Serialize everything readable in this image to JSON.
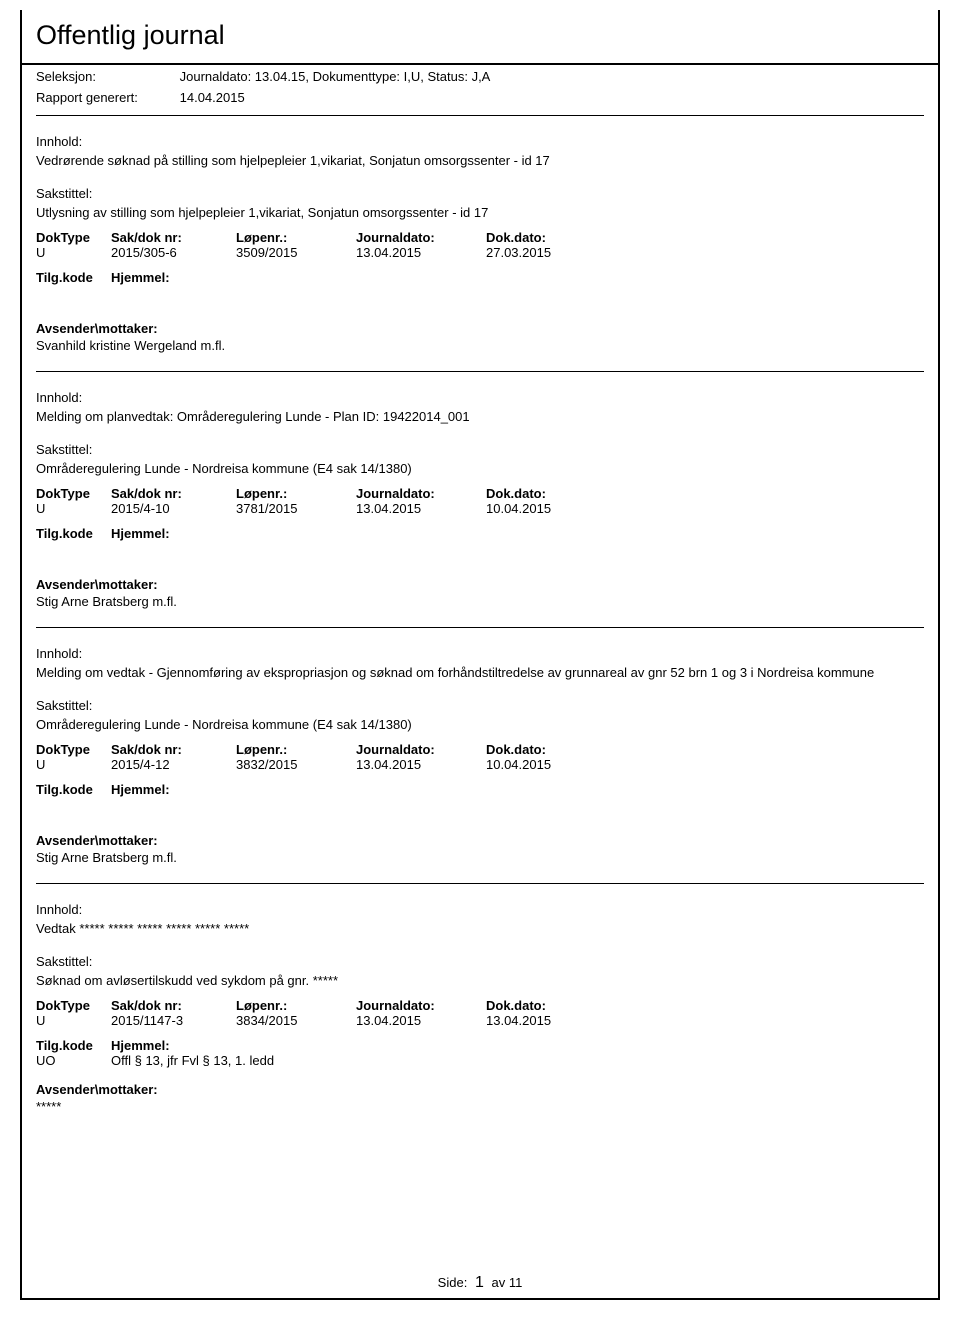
{
  "header": {
    "title": "Offentlig journal",
    "seleksjon_label": "Seleksjon:",
    "seleksjon_value": "Journaldato: 13.04.15, Dokumenttype: I,U, Status: J,A",
    "rapport_label": "Rapport generert:",
    "rapport_value": "14.04.2015"
  },
  "labels": {
    "innhold": "Innhold:",
    "sakstittel": "Sakstittel:",
    "doktype": "DokType",
    "sakdok": "Sak/dok nr:",
    "lopenr": "Løpenr.:",
    "journaldato": "Journaldato:",
    "dokdato": "Dok.dato:",
    "tilgkode": "Tilg.kode",
    "hjemmel": "Hjemmel:",
    "avsender": "Avsender\\mottaker:"
  },
  "entries": [
    {
      "innhold": "Vedrørende søknad på stilling som hjelpepleier 1,vikariat, Sonjatun omsorgssenter - id 17",
      "sakstittel": "Utlysning av stilling som hjelpepleier 1,vikariat, Sonjatun omsorgssenter - id 17",
      "doktype": "U",
      "sakdok": "2015/305-6",
      "lopenr": "3509/2015",
      "journaldato": "13.04.2015",
      "dokdato": "27.03.2015",
      "tilgkode": "",
      "hjemmel": "",
      "avsender": "Svanhild kristine Wergeland m.fl."
    },
    {
      "innhold": "Melding om planvedtak: Områderegulering Lunde - Plan ID: 19422014_001",
      "sakstittel": "Områderegulering Lunde - Nordreisa kommune  (E4 sak 14/1380)",
      "doktype": "U",
      "sakdok": "2015/4-10",
      "lopenr": "3781/2015",
      "journaldato": "13.04.2015",
      "dokdato": "10.04.2015",
      "tilgkode": "",
      "hjemmel": "",
      "avsender": "Stig Arne Bratsberg m.fl."
    },
    {
      "innhold": "Melding om vedtak - Gjennomføring av ekspropriasjon og søknad om forhåndstiltredelse av grunnareal av gnr 52 brn 1 og 3 i Nordreisa kommune",
      "sakstittel": "Områderegulering Lunde - Nordreisa kommune  (E4 sak 14/1380)",
      "doktype": "U",
      "sakdok": "2015/4-12",
      "lopenr": "3832/2015",
      "journaldato": "13.04.2015",
      "dokdato": "10.04.2015",
      "tilgkode": "",
      "hjemmel": "",
      "avsender": "Stig Arne Bratsberg m.fl."
    },
    {
      "innhold": "Vedtak ***** ***** ***** ***** ***** *****",
      "sakstittel": "Søknad om avløsertilskudd ved sykdom på gnr. *****",
      "doktype": "U",
      "sakdok": "2015/1147-3",
      "lopenr": "3834/2015",
      "journaldato": "13.04.2015",
      "dokdato": "13.04.2015",
      "tilgkode": "UO",
      "hjemmel": "Offl § 13, jfr Fvl § 13, 1. ledd",
      "avsender": "*****"
    }
  ],
  "footer": {
    "side_label": "Side:",
    "page": "1",
    "av": "av",
    "total": "11"
  }
}
